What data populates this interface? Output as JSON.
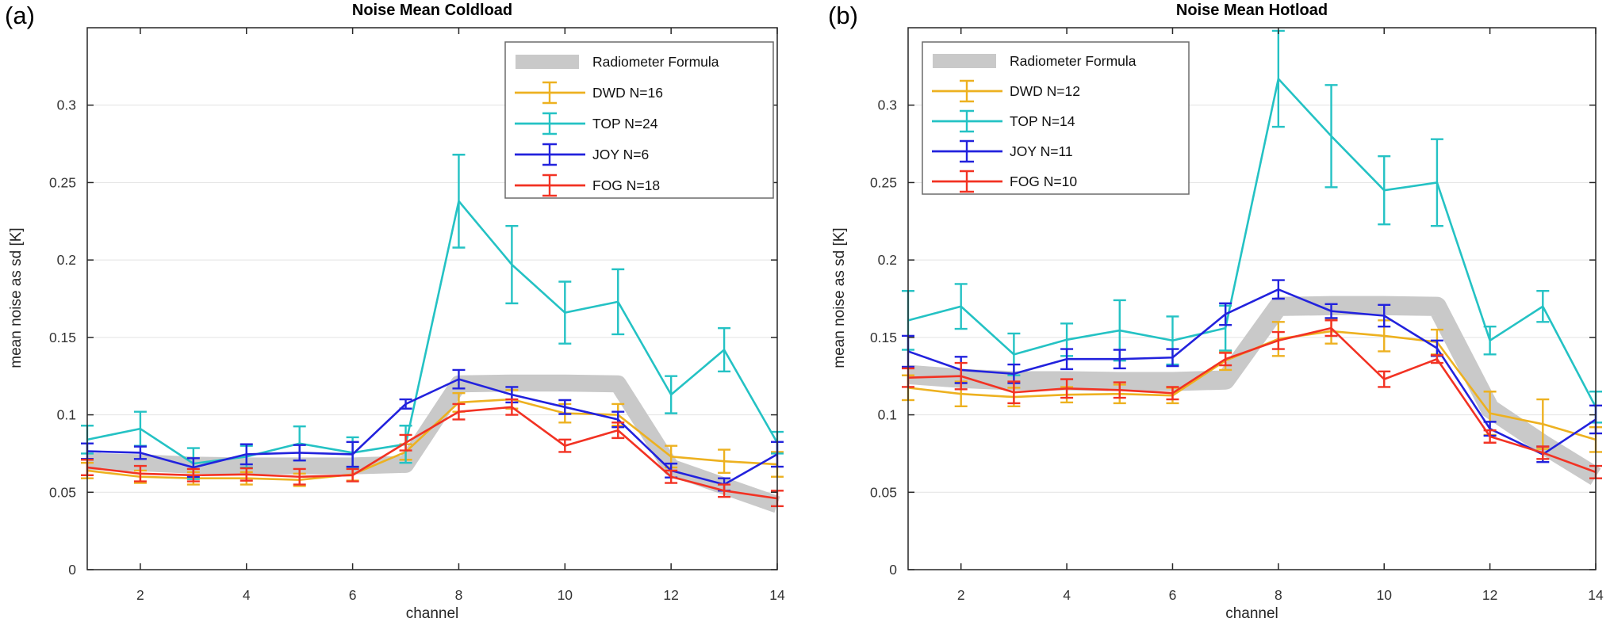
{
  "figure": {
    "background": "#ffffff",
    "panel_labels": [
      "(a)",
      "(b)"
    ]
  },
  "chart_data": [
    {
      "type": "line",
      "title": "Noise Mean Coldload",
      "xlabel": "channel",
      "ylabel": "mean noise as sd [K]",
      "x": [
        1,
        2,
        3,
        4,
        5,
        6,
        7,
        8,
        9,
        10,
        11,
        12,
        13,
        14
      ],
      "xlim": [
        1,
        14
      ],
      "ylim": [
        0,
        0.35
      ],
      "xticks": [
        2,
        4,
        6,
        8,
        10,
        12,
        14
      ],
      "yticks": [
        0,
        0.05,
        0.1,
        0.15,
        0.2,
        0.25,
        0.3
      ],
      "ytick_labels": [
        "0",
        "0.05",
        "0.1",
        "0.15",
        "0.2",
        "0.25",
        "0.3"
      ],
      "grid": "horizontal",
      "legend_position": "top-right",
      "band": {
        "label": "Radiometer Formula",
        "color": "#c9c9c9",
        "halfwidth": 0.0055,
        "values": [
          0.07,
          0.069,
          0.0675,
          0.067,
          0.067,
          0.067,
          0.068,
          0.12,
          0.1205,
          0.1205,
          0.12,
          0.066,
          0.054,
          0.042
        ]
      },
      "series": [
        {
          "name": "dwd",
          "label": "DWD N=16",
          "color": "#edb120",
          "values": [
            0.064,
            0.06,
            0.059,
            0.059,
            0.058,
            0.0615,
            0.076,
            0.108,
            0.11,
            0.101,
            0.1,
            0.073,
            0.07,
            0.068
          ],
          "errors": [
            0.005,
            0.004,
            0.004,
            0.004,
            0.004,
            0.004,
            0.005,
            0.006,
            0.006,
            0.006,
            0.007,
            0.007,
            0.0075,
            0.008
          ]
        },
        {
          "name": "top",
          "label": "TOP N=24",
          "color": "#24c2c4",
          "values": [
            0.084,
            0.091,
            0.0685,
            0.073,
            0.0815,
            0.0755,
            0.081,
            0.238,
            0.197,
            0.166,
            0.173,
            0.113,
            0.142,
            0.082
          ],
          "errors": [
            0.009,
            0.011,
            0.01,
            0.007,
            0.011,
            0.01,
            0.012,
            0.03,
            0.025,
            0.02,
            0.021,
            0.012,
            0.014,
            0.007
          ]
        },
        {
          "name": "joy",
          "label": "JOY N=6",
          "color": "#2222dd",
          "values": [
            0.0765,
            0.0755,
            0.066,
            0.0745,
            0.0755,
            0.0745,
            0.107,
            0.123,
            0.113,
            0.105,
            0.097,
            0.064,
            0.055,
            0.0745
          ],
          "errors": [
            0.005,
            0.004,
            0.006,
            0.0065,
            0.005,
            0.008,
            0.003,
            0.006,
            0.005,
            0.0045,
            0.005,
            0.0045,
            0.004,
            0.008
          ]
        },
        {
          "name": "fog",
          "label": "FOG N=18",
          "color": "#f23223",
          "values": [
            0.066,
            0.062,
            0.061,
            0.0615,
            0.06,
            0.061,
            0.082,
            0.102,
            0.105,
            0.08,
            0.09,
            0.06,
            0.051,
            0.046
          ],
          "errors": [
            0.005,
            0.005,
            0.004,
            0.004,
            0.005,
            0.004,
            0.005,
            0.005,
            0.005,
            0.004,
            0.005,
            0.004,
            0.004,
            0.005
          ]
        }
      ]
    },
    {
      "type": "line",
      "title": "Noise Mean Hotload",
      "xlabel": "channel",
      "ylabel": "mean noise as sd [K]",
      "x": [
        1,
        2,
        3,
        4,
        5,
        6,
        7,
        8,
        9,
        10,
        11,
        12,
        13,
        14
      ],
      "xlim": [
        1,
        14
      ],
      "ylim": [
        0,
        0.35
      ],
      "xticks": [
        2,
        4,
        6,
        8,
        10,
        12,
        14
      ],
      "yticks": [
        0,
        0.05,
        0.1,
        0.15,
        0.2,
        0.25,
        0.3
      ],
      "ytick_labels": [
        "0",
        "0.05",
        "0.1",
        "0.15",
        "0.2",
        "0.25",
        "0.3"
      ],
      "grid": "horizontal",
      "legend_position": "top-left",
      "band": {
        "label": "Radiometer Formula",
        "color": "#c9c9c9",
        "halfwidth": 0.0062,
        "values": [
          0.126,
          0.1235,
          0.122,
          0.122,
          0.1215,
          0.1215,
          0.1225,
          0.17,
          0.1705,
          0.1705,
          0.17,
          0.104,
          0.081,
          0.06
        ]
      },
      "series": [
        {
          "name": "dwd",
          "label": "DWD N=12",
          "color": "#edb120",
          "values": [
            0.1175,
            0.1135,
            0.1115,
            0.113,
            0.1135,
            0.1125,
            0.135,
            0.149,
            0.154,
            0.151,
            0.147,
            0.101,
            0.094,
            0.084
          ],
          "errors": [
            0.008,
            0.008,
            0.006,
            0.005,
            0.006,
            0.005,
            0.006,
            0.011,
            0.008,
            0.01,
            0.008,
            0.014,
            0.016,
            0.008
          ]
        },
        {
          "name": "top",
          "label": "TOP N=14",
          "color": "#24c2c4",
          "values": [
            0.161,
            0.17,
            0.139,
            0.1485,
            0.1545,
            0.148,
            0.156,
            0.317,
            0.28,
            0.245,
            0.25,
            0.148,
            0.17,
            0.105
          ],
          "errors": [
            0.019,
            0.0145,
            0.0135,
            0.0105,
            0.0195,
            0.0155,
            0.0145,
            0.031,
            0.033,
            0.022,
            0.028,
            0.009,
            0.01,
            0.01
          ]
        },
        {
          "name": "joy",
          "label": "JOY N=11",
          "color": "#2222dd",
          "values": [
            0.141,
            0.129,
            0.1265,
            0.136,
            0.136,
            0.137,
            0.165,
            0.181,
            0.167,
            0.164,
            0.143,
            0.091,
            0.0745,
            0.097
          ],
          "errors": [
            0.01,
            0.0085,
            0.006,
            0.0065,
            0.006,
            0.0055,
            0.007,
            0.006,
            0.0045,
            0.007,
            0.005,
            0.0045,
            0.005,
            0.009
          ]
        },
        {
          "name": "fog",
          "label": "FOG N=10",
          "color": "#f23223",
          "values": [
            0.124,
            0.125,
            0.1145,
            0.117,
            0.116,
            0.114,
            0.136,
            0.148,
            0.156,
            0.123,
            0.136,
            0.086,
            0.0755,
            0.063
          ],
          "errors": [
            0.006,
            0.0085,
            0.007,
            0.006,
            0.005,
            0.004,
            0.004,
            0.0055,
            0.005,
            0.005,
            0.0025,
            0.004,
            0.004,
            0.004
          ]
        }
      ]
    }
  ]
}
